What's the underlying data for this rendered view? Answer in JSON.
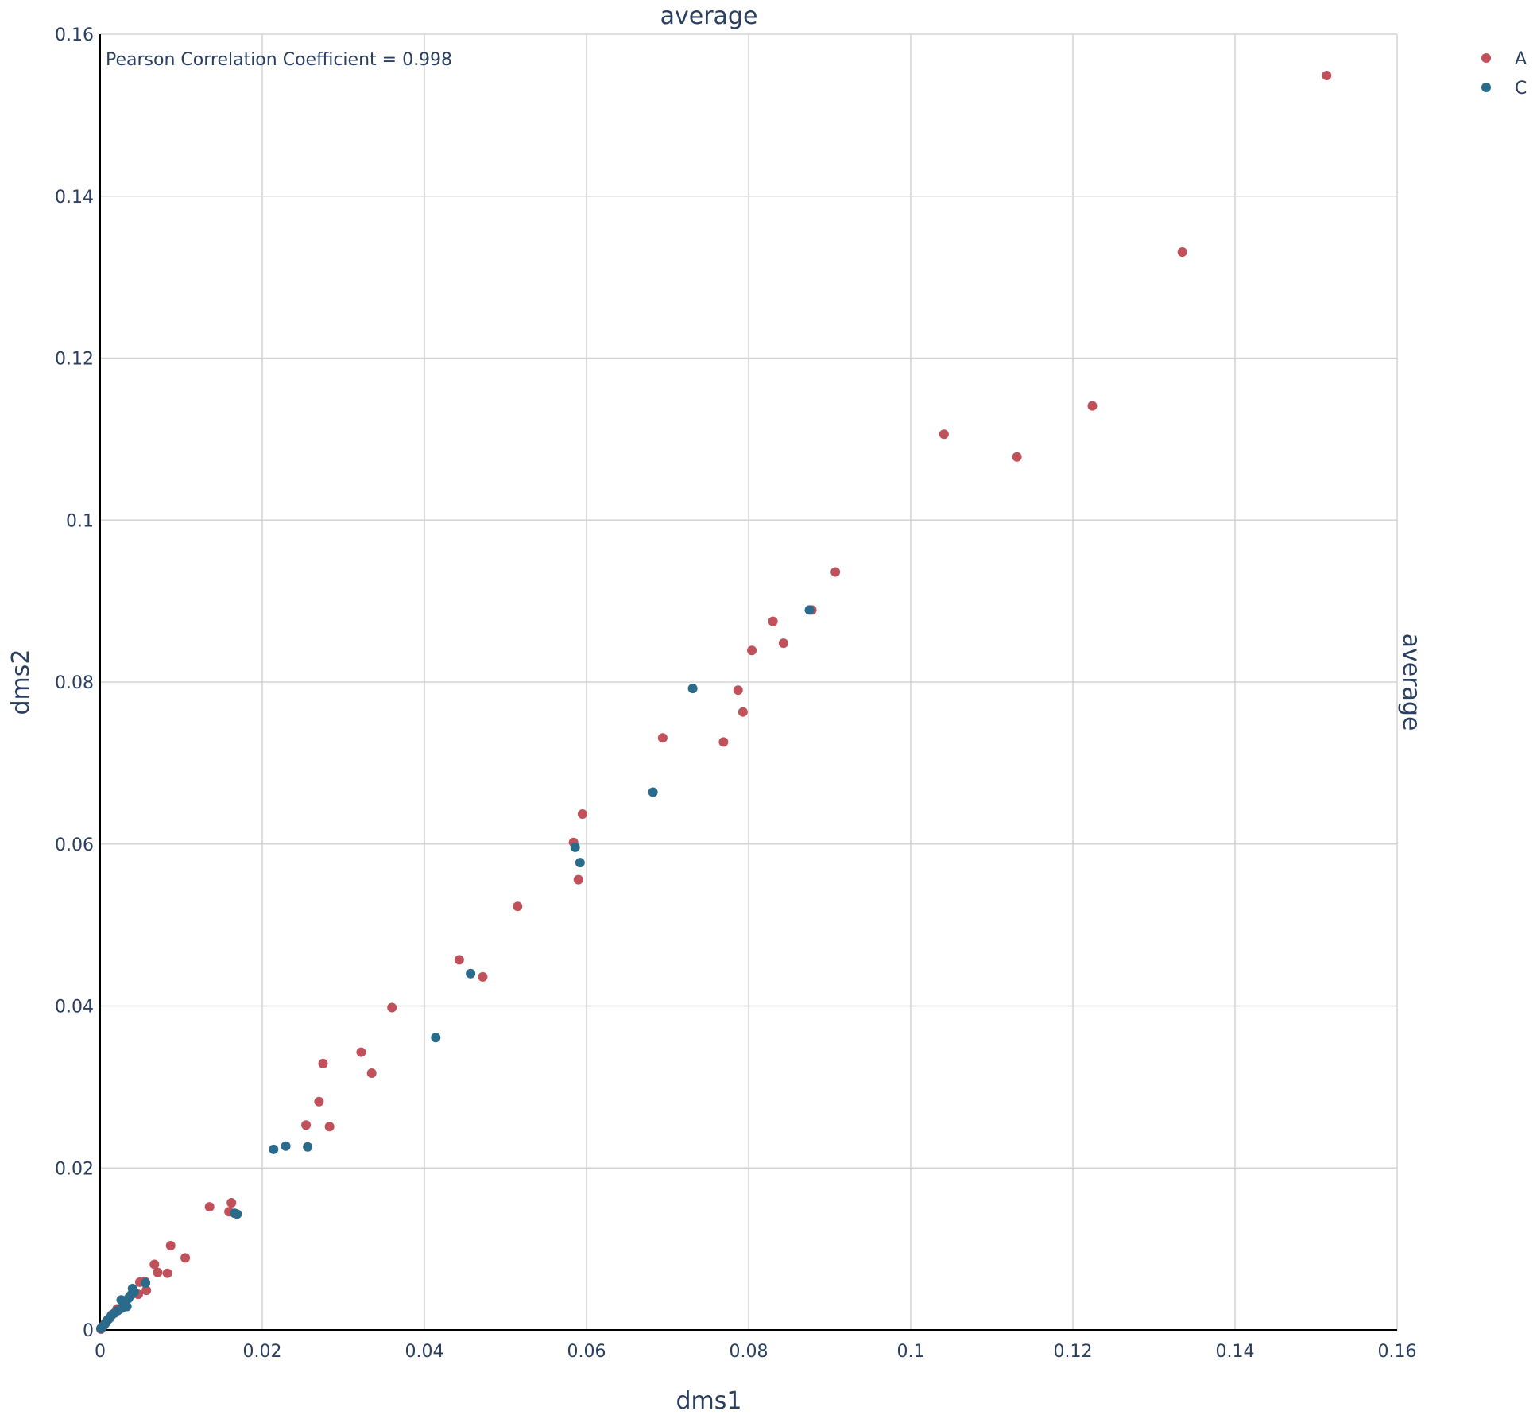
{
  "chart_data": {
    "type": "scatter",
    "title": "average",
    "side_label": "average",
    "xlabel": "dms1",
    "ylabel": "dms2",
    "xlim": [
      0,
      0.16
    ],
    "ylim": [
      0,
      0.16
    ],
    "x_ticks": [
      "0",
      "0.02",
      "0.04",
      "0.06",
      "0.08",
      "0.1",
      "0.12",
      "0.14",
      "0.16"
    ],
    "y_ticks": [
      "0",
      "0.02",
      "0.04",
      "0.06",
      "0.08",
      "0.1",
      "0.12",
      "0.14",
      "0.16"
    ],
    "grid": true,
    "legend_position": "top-right",
    "annotation": "Pearson Correlation Coefficient = 0.998",
    "series": [
      {
        "name": "A",
        "color": "#c0505a",
        "points": [
          [
            0.1513,
            0.1549
          ],
          [
            0.1335,
            0.1331
          ],
          [
            0.1224,
            0.1141
          ],
          [
            0.1041,
            0.1106
          ],
          [
            0.1131,
            0.1078
          ],
          [
            0.0907,
            0.0936
          ],
          [
            0.0878,
            0.0889
          ],
          [
            0.083,
            0.0875
          ],
          [
            0.0843,
            0.0848
          ],
          [
            0.0804,
            0.0839
          ],
          [
            0.0787,
            0.079
          ],
          [
            0.0793,
            0.0763
          ],
          [
            0.0769,
            0.0726
          ],
          [
            0.0694,
            0.0731
          ],
          [
            0.0595,
            0.0637
          ],
          [
            0.0584,
            0.0602
          ],
          [
            0.059,
            0.0556
          ],
          [
            0.0515,
            0.0523
          ],
          [
            0.0443,
            0.0457
          ],
          [
            0.0472,
            0.0436
          ],
          [
            0.036,
            0.0398
          ],
          [
            0.0322,
            0.0343
          ],
          [
            0.0335,
            0.0317
          ],
          [
            0.0275,
            0.0329
          ],
          [
            0.027,
            0.0282
          ],
          [
            0.0254,
            0.0253
          ],
          [
            0.0283,
            0.0251
          ],
          [
            0.0162,
            0.0157
          ],
          [
            0.0159,
            0.0146
          ],
          [
            0.0135,
            0.0152
          ],
          [
            0.0087,
            0.0104
          ],
          [
            0.0105,
            0.0089
          ],
          [
            0.0067,
            0.0081
          ],
          [
            0.0071,
            0.0071
          ],
          [
            0.0083,
            0.007
          ],
          [
            0.0055,
            0.006
          ],
          [
            0.0049,
            0.0059
          ],
          [
            0.0057,
            0.0049
          ],
          [
            0.0047,
            0.0044
          ],
          [
            0.0038,
            0.0043
          ],
          [
            0.003,
            0.0033
          ],
          [
            0.0021,
            0.0026
          ],
          [
            0.0015,
            0.0019
          ],
          [
            0.001,
            0.0013
          ],
          [
            0.0006,
            0.0008
          ],
          [
            0.0003,
            0.0004
          ],
          [
            0.0001,
            0.0001
          ]
        ]
      },
      {
        "name": "C",
        "color": "#2a6a8a",
        "points": [
          [
            0.0875,
            0.0889
          ],
          [
            0.0731,
            0.0792
          ],
          [
            0.0682,
            0.0664
          ],
          [
            0.0586,
            0.0596
          ],
          [
            0.0592,
            0.0577
          ],
          [
            0.0457,
            0.044
          ],
          [
            0.0414,
            0.0361
          ],
          [
            0.0214,
            0.0223
          ],
          [
            0.0229,
            0.0227
          ],
          [
            0.0256,
            0.0226
          ],
          [
            0.0166,
            0.0144
          ],
          [
            0.0169,
            0.0143
          ],
          [
            0.0056,
            0.0058
          ],
          [
            0.004,
            0.0051
          ],
          [
            0.0042,
            0.0047
          ],
          [
            0.0038,
            0.0043
          ],
          [
            0.0035,
            0.0039
          ],
          [
            0.0031,
            0.0036
          ],
          [
            0.0026,
            0.0037
          ],
          [
            0.0033,
            0.0029
          ],
          [
            0.0027,
            0.0027
          ],
          [
            0.0022,
            0.0024
          ],
          [
            0.0018,
            0.0021
          ],
          [
            0.0014,
            0.0018
          ],
          [
            0.0012,
            0.0015
          ],
          [
            0.0009,
            0.0012
          ],
          [
            0.0007,
            0.0009
          ],
          [
            0.0005,
            0.0006
          ],
          [
            0.0003,
            0.0004
          ],
          [
            0.0001,
            0.0002
          ]
        ]
      }
    ]
  }
}
